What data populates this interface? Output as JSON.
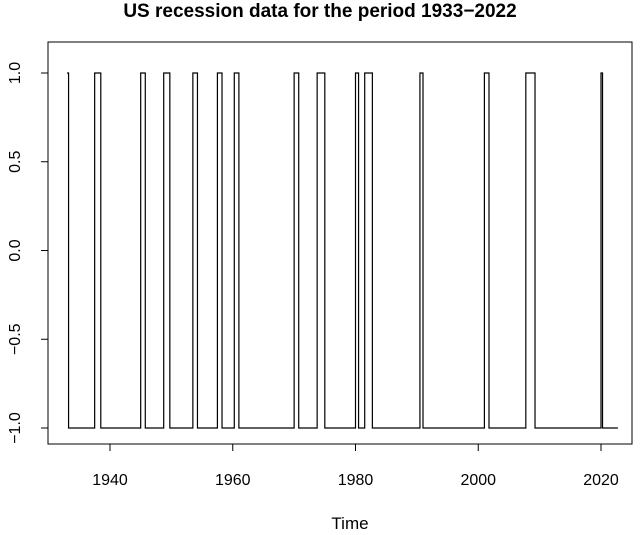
{
  "chart_data": {
    "type": "line",
    "title": "US recession data for the period 1933−2022",
    "xlabel": "Time",
    "ylabel": "",
    "xlim": [
      1933,
      2023
    ],
    "ylim": [
      -1.0,
      1.0
    ],
    "x_ticks": [
      1940,
      1960,
      1980,
      2000,
      2020
    ],
    "x_tick_labels": [
      "1940",
      "1960",
      "1980",
      "2000",
      "2020"
    ],
    "y_ticks": [
      -1.0,
      -0.5,
      0.0,
      0.5,
      1.0
    ],
    "y_tick_labels": [
      "−1.0",
      "−0.5",
      "0.0",
      "0.5",
      "1.0"
    ],
    "grid": false,
    "legend": "none",
    "series_color": "#000000",
    "series": [
      {
        "values_description": "quarterly indicator: 1 during recession, -1 otherwise",
        "recession_intervals": [
          [
            1933.0,
            1933.25
          ],
          [
            1937.5,
            1938.5
          ],
          [
            1945.0,
            1945.75
          ],
          [
            1948.75,
            1949.75
          ],
          [
            1953.5,
            1954.25
          ],
          [
            1957.5,
            1958.25
          ],
          [
            1960.25,
            1961.0
          ],
          [
            1970.0,
            1970.75
          ],
          [
            1973.75,
            1975.0
          ],
          [
            1980.0,
            1980.5
          ],
          [
            1981.5,
            1982.75
          ],
          [
            1990.5,
            1991.0
          ],
          [
            2001.0,
            2001.75
          ],
          [
            2007.75,
            2009.25
          ],
          [
            2020.0,
            2020.25
          ]
        ],
        "x_end": 2022.75
      }
    ]
  }
}
